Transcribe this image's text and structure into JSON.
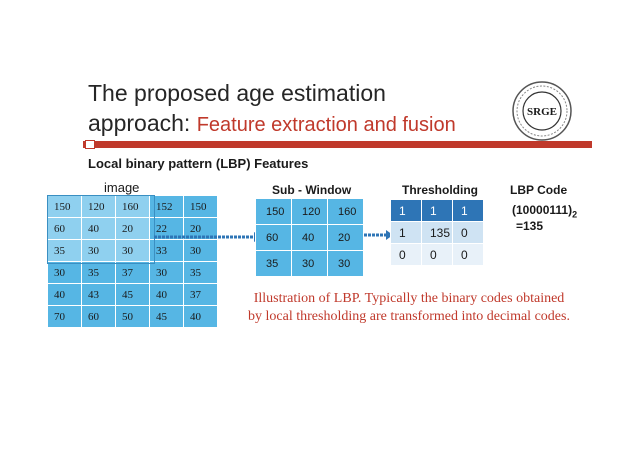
{
  "slide": {
    "title_line1": "The proposed age estimation",
    "title_line2_prefix": "approach: ",
    "title_line2_sub": "Feature extraction and fusion",
    "section_heading": "Local binary pattern (LBP) Features",
    "logo_text": "SRGE",
    "colors": {
      "accent": "#c0392b",
      "cell": "#56b6e4",
      "threshold_head": "#2e75b6"
    }
  },
  "image_grid": {
    "label": "image",
    "rows": [
      [
        "150",
        "120",
        "160",
        "152",
        "150"
      ],
      [
        "60",
        "40",
        "20",
        "22",
        "20"
      ],
      [
        "35",
        "30",
        "30",
        "33",
        "30"
      ],
      [
        "30",
        "35",
        "37",
        "30",
        "35"
      ],
      [
        "40",
        "43",
        "45",
        "40",
        "37"
      ],
      [
        "70",
        "60",
        "50",
        "45",
        "40"
      ]
    ]
  },
  "sub_window": {
    "label": "Sub - Window",
    "rows": [
      [
        "150",
        "120",
        "160"
      ],
      [
        "60",
        "40",
        "20"
      ],
      [
        "35",
        "30",
        "30"
      ]
    ]
  },
  "thresholding": {
    "label": "Thresholding",
    "rows": [
      [
        "1",
        "1",
        "1"
      ],
      [
        "1",
        "135",
        "0"
      ],
      [
        "0",
        "0",
        "0"
      ]
    ]
  },
  "lbp": {
    "label": "LBP Code",
    "binary": "(10000111)",
    "base": "2",
    "decimal": "=135"
  },
  "caption": "Illustration of LBP. Typically the binary codes obtained by local thresholding are transformed into decimal codes."
}
